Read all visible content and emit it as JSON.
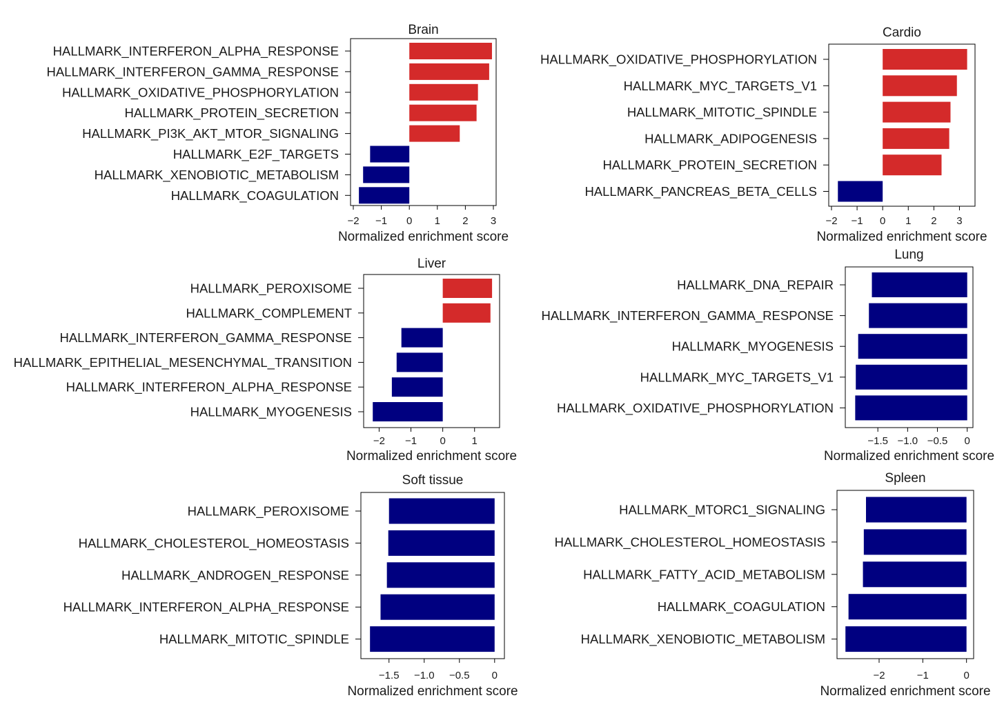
{
  "colors": {
    "positive": "#d42a2a",
    "negative": "#000080"
  },
  "chart_data": [
    {
      "type": "bar",
      "orientation": "horizontal",
      "title": "Brain",
      "xlabel": "Normalized enrichment score",
      "xlim": [
        -2,
        3
      ],
      "xticks": [
        -2,
        -1,
        0,
        1,
        2,
        3
      ],
      "xtick_labels": [
        "−2",
        "−1",
        "0",
        "1",
        "2",
        "3"
      ],
      "categories": [
        "HALLMARK_INTERFERON_ALPHA_RESPONSE",
        "HALLMARK_INTERFERON_GAMMA_RESPONSE",
        "HALLMARK_OXIDATIVE_PHOSPHORYLATION",
        "HALLMARK_PROTEIN_SECRETION",
        "HALLMARK_PI3K_AKT_MTOR_SIGNALING",
        "HALLMARK_E2F_TARGETS",
        "HALLMARK_XENOBIOTIC_METABOLISM",
        "HALLMARK_COAGULATION"
      ],
      "values": [
        2.95,
        2.85,
        2.45,
        2.4,
        1.8,
        -1.4,
        -1.65,
        -1.8
      ]
    },
    {
      "type": "bar",
      "orientation": "horizontal",
      "title": "Cardio",
      "xlabel": "Normalized enrichment score",
      "xlim": [
        -2,
        3.5
      ],
      "xticks": [
        -2,
        -1,
        0,
        1,
        2,
        3
      ],
      "xtick_labels": [
        "−2",
        "−1",
        "0",
        "1",
        "2",
        "3"
      ],
      "categories": [
        "HALLMARK_OXIDATIVE_PHOSPHORYLATION",
        "HALLMARK_MYC_TARGETS_V1",
        "HALLMARK_MITOTIC_SPINDLE",
        "HALLMARK_ADIPOGENESIS",
        "HALLMARK_PROTEIN_SECRETION",
        "HALLMARK_PANCREAS_BETA_CELLS"
      ],
      "values": [
        3.3,
        2.9,
        2.65,
        2.6,
        2.3,
        -1.75
      ]
    },
    {
      "type": "bar",
      "orientation": "horizontal",
      "title": "Liver",
      "xlabel": "Normalized enrichment score",
      "xlim": [
        -2.4,
        1.7
      ],
      "xticks": [
        -2,
        -1,
        0,
        1
      ],
      "xtick_labels": [
        "−2",
        "−1",
        "0",
        "1"
      ],
      "categories": [
        "HALLMARK_PEROXISOME",
        "HALLMARK_COMPLEMENT",
        "HALLMARK_INTERFERON_GAMMA_RESPONSE",
        "HALLMARK_EPITHELIAL_MESENCHYMAL_TRANSITION",
        "HALLMARK_INTERFERON_ALPHA_RESPONSE",
        "HALLMARK_MYOGENESIS"
      ],
      "values": [
        1.55,
        1.5,
        -1.3,
        -1.45,
        -1.6,
        -2.2
      ]
    },
    {
      "type": "bar",
      "orientation": "horizontal",
      "title": "Lung",
      "xlabel": "Normalized enrichment score",
      "xlim": [
        -2.0,
        0.05
      ],
      "xticks": [
        -1.5,
        -1.0,
        -0.5,
        0
      ],
      "xtick_labels": [
        "−1.5",
        "−1.0",
        "−0.5",
        "0"
      ],
      "categories": [
        "HALLMARK_DNA_REPAIR",
        "HALLMARK_INTERFERON_GAMMA_RESPONSE",
        "HALLMARK_MYOGENESIS",
        "HALLMARK_MYC_TARGETS_V1",
        "HALLMARK_OXIDATIVE_PHOSPHORYLATION"
      ],
      "values": [
        -1.6,
        -1.65,
        -1.83,
        -1.87,
        -1.88
      ]
    },
    {
      "type": "bar",
      "orientation": "horizontal",
      "title": "Soft tissue",
      "xlabel": "Normalized enrichment score",
      "xlim": [
        -1.86,
        0.1
      ],
      "xticks": [
        -1.5,
        -1.0,
        -0.5,
        0
      ],
      "xtick_labels": [
        "−1.5",
        "−1.0",
        "−0.5",
        "0"
      ],
      "categories": [
        "HALLMARK_PEROXISOME",
        "HALLMARK_CHOLESTEROL_HOMEOSTASIS",
        "HALLMARK_ANDROGEN_RESPONSE",
        "HALLMARK_INTERFERON_ALPHA_RESPONSE",
        "HALLMARK_MITOTIC_SPINDLE"
      ],
      "values": [
        -1.5,
        -1.51,
        -1.53,
        -1.62,
        -1.77
      ]
    },
    {
      "type": "bar",
      "orientation": "horizontal",
      "title": "Spleen",
      "xlabel": "Normalized enrichment score",
      "xlim": [
        -2.9,
        0.1
      ],
      "xticks": [
        -2,
        -1,
        0
      ],
      "xtick_labels": [
        "−2",
        "−1",
        "0"
      ],
      "categories": [
        "HALLMARK_MTORC1_SIGNALING",
        "HALLMARK_CHOLESTEROL_HOMEOSTASIS",
        "HALLMARK_FATTY_ACID_METABOLISM",
        "HALLMARK_COAGULATION",
        "HALLMARK_XENOBIOTIC_METABOLISM"
      ],
      "values": [
        -2.3,
        -2.35,
        -2.37,
        -2.7,
        -2.77
      ]
    }
  ]
}
